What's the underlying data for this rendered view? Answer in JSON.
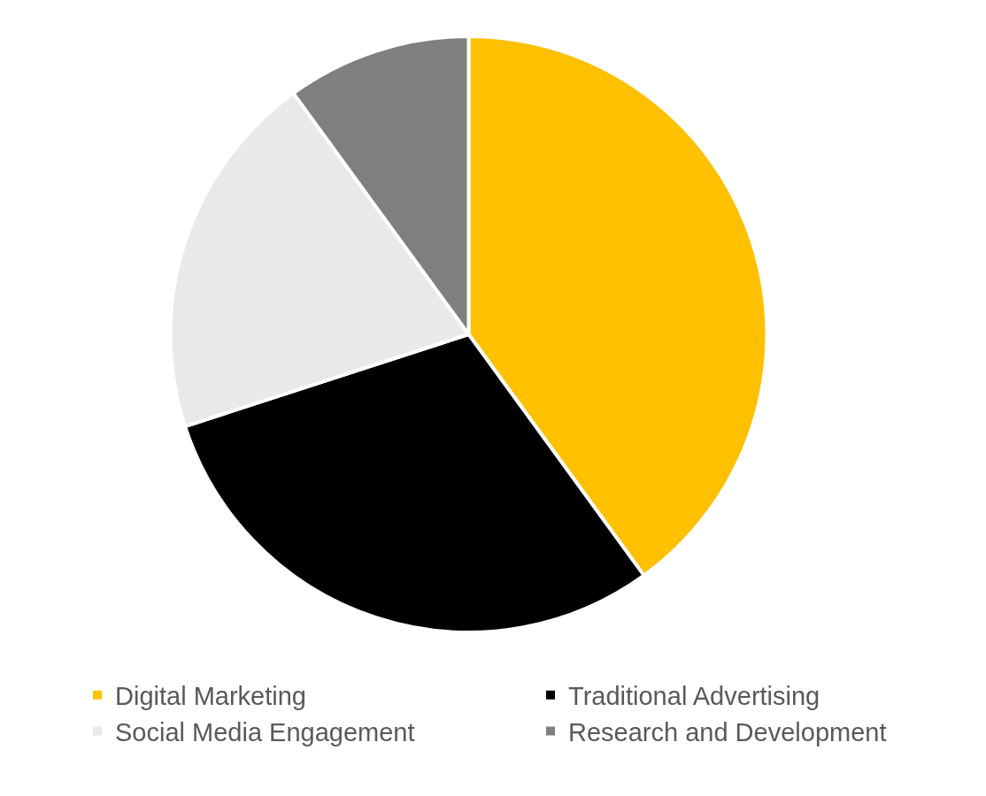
{
  "chart_data": {
    "type": "pie",
    "categories": [
      "Digital Marketing",
      "Traditional Advertising",
      "Social Media Engagement",
      "Research and Development"
    ],
    "values": [
      40,
      30,
      20,
      10
    ],
    "colors": [
      "#ffc000",
      "#000000",
      "#e9e9e9",
      "#7f7f7f"
    ],
    "legend": "bottom"
  }
}
